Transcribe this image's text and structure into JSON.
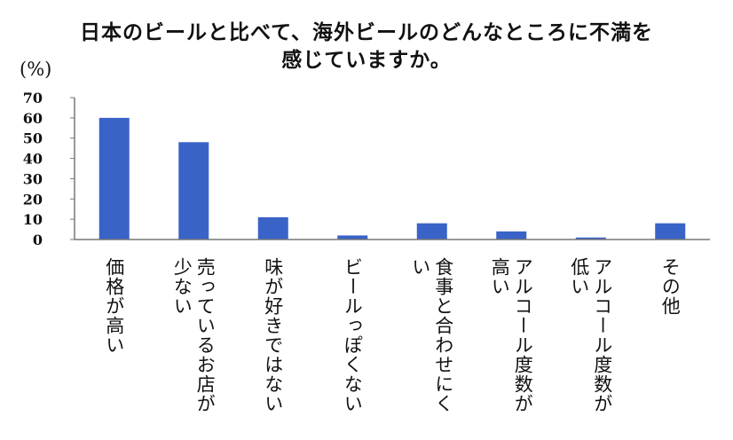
{
  "chart_data": {
    "type": "bar",
    "title_lines": [
      "日本のビールと比べて、海外ビールのどんなところに不満を",
      "感じていますか。"
    ],
    "ylabel": "(%)",
    "xlabel": "",
    "ylim": [
      0,
      70
    ],
    "yticks": [
      70,
      60,
      50,
      40,
      30,
      20,
      10,
      0
    ],
    "grid": false,
    "legend": "none",
    "bar_color": "#3a63c8",
    "categories": [
      "価格が高い",
      "売っているお店が\n少ない",
      "味が好きではない",
      "ビールっぽくない",
      "食事と合わせにく\nい",
      "アルコール度数が\n高い",
      "アルコール度数が\n低い",
      "その他"
    ],
    "values": [
      60,
      48,
      11,
      2,
      8,
      4,
      1,
      8
    ]
  }
}
